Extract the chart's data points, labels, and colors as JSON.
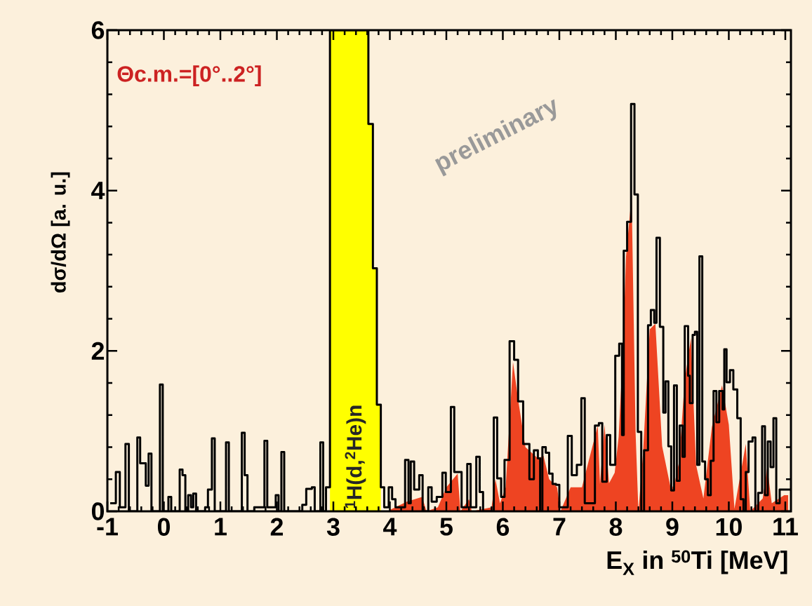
{
  "chart_data": {
    "type": "step",
    "xlabel": "E$_{X}$ in $^{50}$Ti [MeV]",
    "ylabel": "dσ/dΩ [a. u.]",
    "annotations": [
      "Θc.m.=[0°..2°]",
      "preliminary"
    ],
    "xlim": [
      -1,
      11.1
    ],
    "ylim": [
      0,
      6
    ],
    "xticks": [
      -1,
      0,
      1,
      2,
      3,
      4,
      5,
      6,
      7,
      8,
      9,
      10,
      11
    ],
    "yticks": [
      0,
      2,
      4,
      6
    ],
    "series": [
      {
        "type": "area",
        "color": "#ee4422",
        "x": [
          3.95,
          4.3,
          4.57,
          4.65,
          4.85,
          5.0,
          5.2,
          5.25,
          5.4,
          5.45,
          5.8,
          5.87,
          5.95,
          6.05,
          6.18,
          6.28,
          6.4,
          6.62,
          6.72,
          6.82,
          6.96,
          7.02,
          7.2,
          7.4,
          7.68,
          7.72,
          7.8,
          7.88,
          7.98,
          8.05,
          8.12,
          8.18,
          8.28,
          8.35,
          8.4,
          8.48,
          8.6,
          8.7,
          8.82,
          8.98,
          9.05,
          9.12,
          9.22,
          9.33,
          9.42,
          9.55,
          9.7,
          9.88,
          10.0,
          10.1,
          10.3,
          10.38,
          10.6,
          10.68,
          10.76,
          10.98,
          11.05
        ],
        "values": [
          0,
          0.12,
          0.18,
          0,
          0.05,
          0.3,
          0.47,
          0,
          0.15,
          0,
          0.05,
          0.4,
          0.1,
          0.3,
          1.86,
          1.35,
          0.8,
          0.66,
          0.69,
          0.4,
          0.3,
          0,
          0.3,
          0.3,
          1.07,
          0.34,
          1.08,
          0.35,
          0.48,
          0.93,
          1.92,
          3.17,
          3.94,
          0.98,
          0,
          0.71,
          2.27,
          2.34,
          0.81,
          0.26,
          0.38,
          0.62,
          1.64,
          2.16,
          0.58,
          0.16,
          1.05,
          1.57,
          1.08,
          0.03,
          0.84,
          0,
          0.16,
          0.55,
          0.1,
          0.2,
          0.2
        ]
      },
      {
        "type": "area",
        "name": "$^{1}$H(d,$^{2}$He)n",
        "color": "#ffff00",
        "x": [
          2.94,
          2.94,
          3.62,
          3.62,
          3.7,
          3.7,
          3.77,
          3.77,
          3.84,
          3.84
        ],
        "values": [
          0,
          6,
          6,
          4.83,
          4.83,
          3.03,
          3.03,
          1.33,
          1.33,
          0
        ]
      },
      {
        "color": "#000000",
        "x": [
          -0.95,
          -0.85,
          -0.78,
          -0.68,
          -0.62,
          -0.47,
          -0.42,
          -0.32,
          -0.27,
          -0.22,
          -0.07,
          -0.02,
          0.08,
          0.13,
          0.28,
          0.33,
          0.38,
          0.43,
          0.48,
          0.52,
          0.57,
          0.73,
          0.78,
          0.85,
          0.9,
          1.1,
          1.15,
          1.38,
          1.43,
          1.48,
          1.6,
          1.78,
          1.83,
          1.98,
          2.03,
          2.08,
          2.13,
          2.45,
          2.52,
          2.62,
          2.67,
          2.77,
          2.82,
          2.87,
          2.94,
          3.62,
          3.7,
          3.77,
          3.84,
          3.9,
          3.98,
          4.04,
          4.1,
          4.27,
          4.33,
          4.37,
          4.43,
          4.52,
          4.58,
          4.68,
          4.74,
          4.83,
          4.93,
          4.99,
          5.08,
          5.14,
          5.27,
          5.37,
          5.43,
          5.53,
          5.59,
          5.65,
          5.84,
          5.9,
          5.97,
          6.03,
          6.12,
          6.2,
          6.27,
          6.36,
          6.47,
          6.55,
          6.62,
          6.66,
          6.7,
          6.76,
          6.82,
          6.88,
          6.94,
          7.0,
          7.15,
          7.22,
          7.31,
          7.39,
          7.45,
          7.63,
          7.7,
          7.76,
          7.84,
          7.9,
          7.99,
          8.06,
          8.11,
          8.14,
          8.2,
          8.27,
          8.33,
          8.39,
          8.45,
          8.5,
          8.57,
          8.62,
          8.68,
          8.72,
          8.78,
          8.84,
          8.88,
          8.93,
          8.98,
          9.03,
          9.08,
          9.13,
          9.18,
          9.22,
          9.28,
          9.31,
          9.36,
          9.4,
          9.44,
          9.48,
          9.53,
          9.58,
          9.63,
          9.68,
          9.73,
          9.78,
          9.83,
          9.89,
          9.92,
          9.96,
          10.02,
          10.08,
          10.15,
          10.21,
          10.26,
          10.3,
          10.35,
          10.42,
          10.47,
          10.52,
          10.59,
          10.64,
          10.69,
          10.74,
          10.79,
          10.84,
          10.9,
          11.1
        ],
        "values": [
          0.1,
          0.49,
          0.05,
          0.84,
          0,
          0.92,
          0.6,
          0.32,
          0.72,
          0,
          1.58,
          0,
          0.18,
          0,
          0.52,
          0.45,
          0,
          0.2,
          0.05,
          0.22,
          0,
          0.05,
          0.27,
          0.91,
          0,
          0.86,
          0,
          0.98,
          0.45,
          0,
          0.05,
          0.88,
          0.05,
          0.2,
          0,
          0.74,
          0,
          0.08,
          0.28,
          0.3,
          0,
          0.86,
          0,
          0.3,
          6,
          4.83,
          3.03,
          1.33,
          0.3,
          0.05,
          0.3,
          0.15,
          0.05,
          0.64,
          0.1,
          0.62,
          0.27,
          0.45,
          0,
          0.3,
          0.12,
          0.18,
          0.48,
          0.24,
          1.3,
          0.49,
          0.05,
          0.59,
          0.05,
          0.68,
          0.24,
          0,
          1.17,
          0.41,
          0.18,
          0.64,
          2.12,
          1.89,
          1.37,
          0.84,
          0.4,
          0.76,
          0.66,
          0,
          0.8,
          0.73,
          0.47,
          0.34,
          0.33,
          0.05,
          0.94,
          0.45,
          0.58,
          1.41,
          0.1,
          1.07,
          1.1,
          0.37,
          0.95,
          0.58,
          1.94,
          2.09,
          0.95,
          3.25,
          3.61,
          5.08,
          3.95,
          0.99,
          0,
          0.76,
          2.32,
          2.51,
          2.35,
          3.41,
          2.3,
          1.23,
          1.62,
          0.81,
          0.26,
          1.57,
          0.38,
          1.07,
          0.68,
          2.31,
          1.69,
          1.35,
          2.2,
          2.24,
          0.58,
          3.18,
          0.62,
          0.4,
          0.2,
          0.63,
          1.5,
          1.11,
          1.5,
          1.27,
          2.02,
          1.61,
          1.76,
          1.52,
          1.16,
          0.15,
          0,
          0.49,
          0.87,
          0.92,
          0,
          0.23,
          1.06,
          0.2,
          0.87,
          0.55,
          1.16,
          0.1,
          0.27,
          0.27
        ]
      }
    ]
  }
}
